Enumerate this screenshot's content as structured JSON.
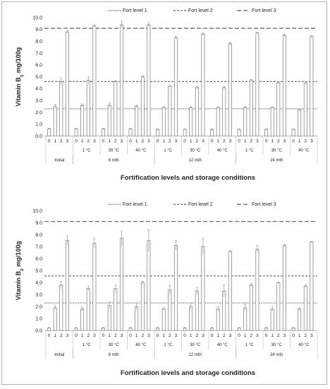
{
  "chart_data": [
    {
      "type": "bar",
      "ylabel": "Vitamin B1 mg/100g",
      "ylabel_parts": [
        "Vitamin B",
        "1",
        " mg/100g"
      ],
      "xlabel": "Fortification levels and storage conditions",
      "ylim": [
        0,
        10
      ],
      "yticks": [
        "0.0",
        "1.0",
        "2.0",
        "3.0",
        "4.0",
        "5.0",
        "6.0",
        "7.0",
        "8.0",
        "9.0",
        "10.0"
      ],
      "grid": false,
      "legend": {
        "placement": "top",
        "entries": [
          {
            "label": "Fort level 1",
            "style": "dotted"
          },
          {
            "label": "Fort level 2",
            "style": "dashed"
          },
          {
            "label": "Fort level 3",
            "style": "long-dash"
          }
        ]
      },
      "reference_lines": [
        2.3,
        4.6,
        9.1
      ],
      "level_labels": [
        "0",
        "1",
        "2",
        "3"
      ],
      "groups": [
        {
          "temp": "Initial",
          "period": "Initial",
          "values": [
            0.6,
            2.5,
            4.6,
            8.8
          ],
          "errors": [
            0.05,
            0.15,
            0.3,
            0.1
          ]
        },
        {
          "temp": "1 °C",
          "period": "6 mth",
          "values": [
            0.6,
            2.6,
            4.7,
            9.3
          ],
          "errors": [
            0.05,
            0.1,
            0.3,
            0.1
          ]
        },
        {
          "temp": "30 °C",
          "period": "6 mth",
          "values": [
            0.6,
            2.6,
            4.6,
            9.4
          ],
          "errors": [
            0.05,
            0.2,
            0.1,
            0.3
          ]
        },
        {
          "temp": "40 °C",
          "period": "6 mth",
          "values": [
            0.6,
            2.5,
            5.0,
            9.4
          ],
          "errors": [
            0.05,
            0.1,
            0.1,
            0.2
          ]
        },
        {
          "temp": "1 °C",
          "period": "12 mth",
          "values": [
            0.55,
            2.4,
            4.2,
            8.3
          ],
          "errors": [
            0.05,
            0.1,
            0.1,
            0.1
          ]
        },
        {
          "temp": "30 °C",
          "period": "12 mth",
          "values": [
            0.55,
            2.4,
            4.1,
            8.6
          ],
          "errors": [
            0.05,
            0.1,
            0.1,
            0.1
          ]
        },
        {
          "temp": "40 °C",
          "period": "12 mth",
          "values": [
            0.55,
            2.4,
            4.1,
            7.8
          ],
          "errors": [
            0.05,
            0.1,
            0.1,
            0.1
          ]
        },
        {
          "temp": "1 °C",
          "period": "24 mth",
          "values": [
            0.55,
            2.4,
            4.7,
            8.7
          ],
          "errors": [
            0.05,
            0.1,
            0.1,
            0.05
          ]
        },
        {
          "temp": "30 °C",
          "period": "24 mth",
          "values": [
            0.55,
            2.4,
            4.5,
            8.5
          ],
          "errors": [
            0.05,
            0.05,
            0.1,
            0.1
          ]
        },
        {
          "temp": "40 °C",
          "period": "24 mth",
          "values": [
            0.55,
            2.2,
            4.5,
            8.4
          ],
          "errors": [
            0.05,
            0.05,
            0.1,
            0.1
          ]
        }
      ],
      "period_labels": [
        "Initial",
        "6 mth",
        "12 mth",
        "24 mth"
      ]
    },
    {
      "type": "bar",
      "ylabel": "Vitamin B2 mg/100g",
      "ylabel_parts": [
        "Vitamin B",
        "2",
        " mg/100g"
      ],
      "xlabel": "Fortification levels and storage conditions",
      "ylim": [
        0,
        10
      ],
      "yticks": [
        "0.0",
        "1.0",
        "2.0",
        "3.0",
        "4.0",
        "5.0",
        "6.0",
        "7.0",
        "8.0",
        "9.0",
        "10.0"
      ],
      "grid": false,
      "legend": {
        "placement": "top",
        "entries": [
          {
            "label": "Fort level 1",
            "style": "dotted"
          },
          {
            "label": "Fort level 2",
            "style": "dashed"
          },
          {
            "label": "Fort level 3",
            "style": "long-dash"
          }
        ]
      },
      "reference_lines": [
        2.3,
        4.55,
        9.1
      ],
      "level_labels": [
        "0",
        "1",
        "2",
        "3"
      ],
      "groups": [
        {
          "temp": "Initial",
          "period": "Initial",
          "values": [
            0.2,
            1.9,
            3.8,
            7.5
          ],
          "errors": [
            0.05,
            0.2,
            0.3,
            0.4
          ]
        },
        {
          "temp": "1 °C",
          "period": "6 mth",
          "values": [
            0.2,
            1.8,
            3.5,
            7.3
          ],
          "errors": [
            0.05,
            0.2,
            0.2,
            0.4
          ]
        },
        {
          "temp": "30 °C",
          "period": "6 mth",
          "values": [
            0.2,
            2.1,
            3.5,
            7.7
          ],
          "errors": [
            0.05,
            0.3,
            0.3,
            0.6
          ]
        },
        {
          "temp": "40 °C",
          "period": "6 mth",
          "values": [
            0.2,
            2.0,
            4.0,
            7.5
          ],
          "errors": [
            0.05,
            0.3,
            0.1,
            0.9
          ]
        },
        {
          "temp": "1 °C",
          "period": "12 mth",
          "values": [
            0.2,
            1.8,
            3.4,
            7.1
          ],
          "errors": [
            0.05,
            0.1,
            0.4,
            0.4
          ]
        },
        {
          "temp": "30 °C",
          "period": "12 mth",
          "values": [
            0.2,
            2.0,
            3.3,
            7.0
          ],
          "errors": [
            0.05,
            0.3,
            0.3,
            0.7
          ]
        },
        {
          "temp": "40 °C",
          "period": "12 mth",
          "values": [
            0.2,
            1.8,
            3.3,
            6.6
          ],
          "errors": [
            0.05,
            0.2,
            0.5,
            0.05
          ]
        },
        {
          "temp": "1 °C",
          "period": "24 mth",
          "values": [
            0.2,
            1.9,
            3.8,
            6.8
          ],
          "errors": [
            0.05,
            0.3,
            0.1,
            0.3
          ]
        },
        {
          "temp": "30 °C",
          "period": "24 mth",
          "values": [
            0.2,
            1.8,
            4.0,
            7.1
          ],
          "errors": [
            0.05,
            0.2,
            0.05,
            0.1
          ]
        },
        {
          "temp": "40 °C",
          "period": "24 mth",
          "values": [
            0.2,
            1.8,
            3.7,
            7.4
          ],
          "errors": [
            0.05,
            0.1,
            0.1,
            0.05
          ]
        }
      ],
      "period_labels": [
        "Initial",
        "6 mth",
        "12 mth",
        "24 mth"
      ]
    }
  ]
}
